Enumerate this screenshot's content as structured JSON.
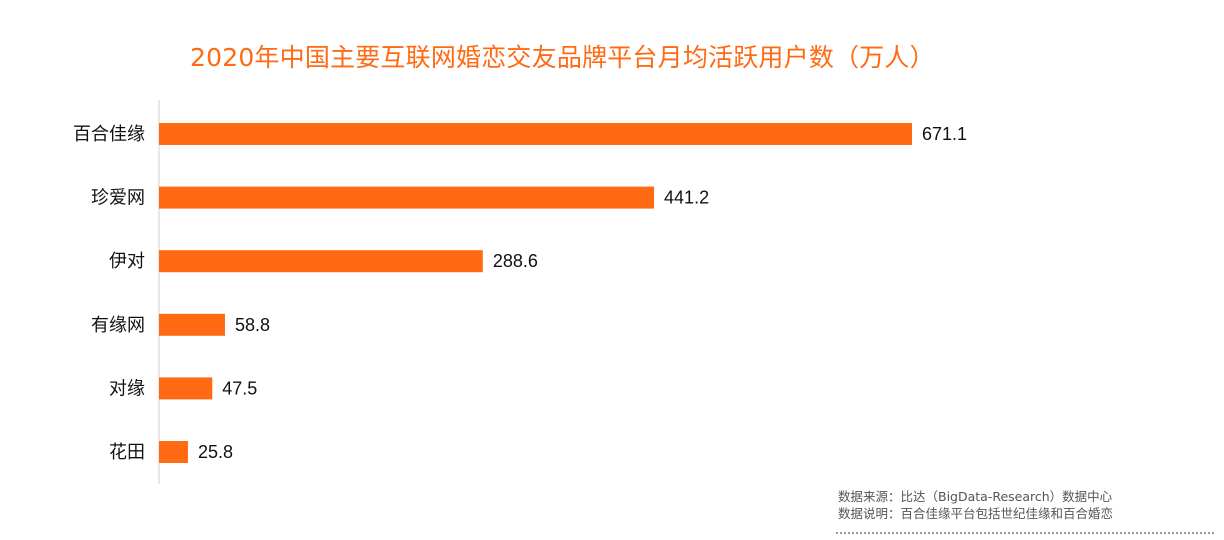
{
  "chart_data": {
    "type": "bar",
    "orientation": "horizontal",
    "title": "2020年中国主要互联网婚恋交友品牌平台月均活跃用户数（万人）",
    "categories": [
      "百合佳缘",
      "珍爱网",
      "伊对",
      "有缘网",
      "对缘",
      "花田"
    ],
    "values": [
      671.1,
      441.2,
      288.6,
      58.8,
      47.5,
      25.8
    ],
    "value_labels": [
      "671.1",
      "441.2",
      "288.6",
      "58.8",
      "47.5",
      "25.8"
    ],
    "xlim": [
      0,
      671.1
    ],
    "bar_color": "#ff6a13",
    "grid": false,
    "legend": "none"
  },
  "notes": {
    "source": "数据来源：比达（BigData-Research）数据中心",
    "explanation": "数据说明：百合佳缘平台包括世纪佳缘和百合婚恋"
  },
  "colors": {
    "accent": "#ff6a13",
    "axis": "#d0d0d0",
    "label_text": "#111111"
  }
}
